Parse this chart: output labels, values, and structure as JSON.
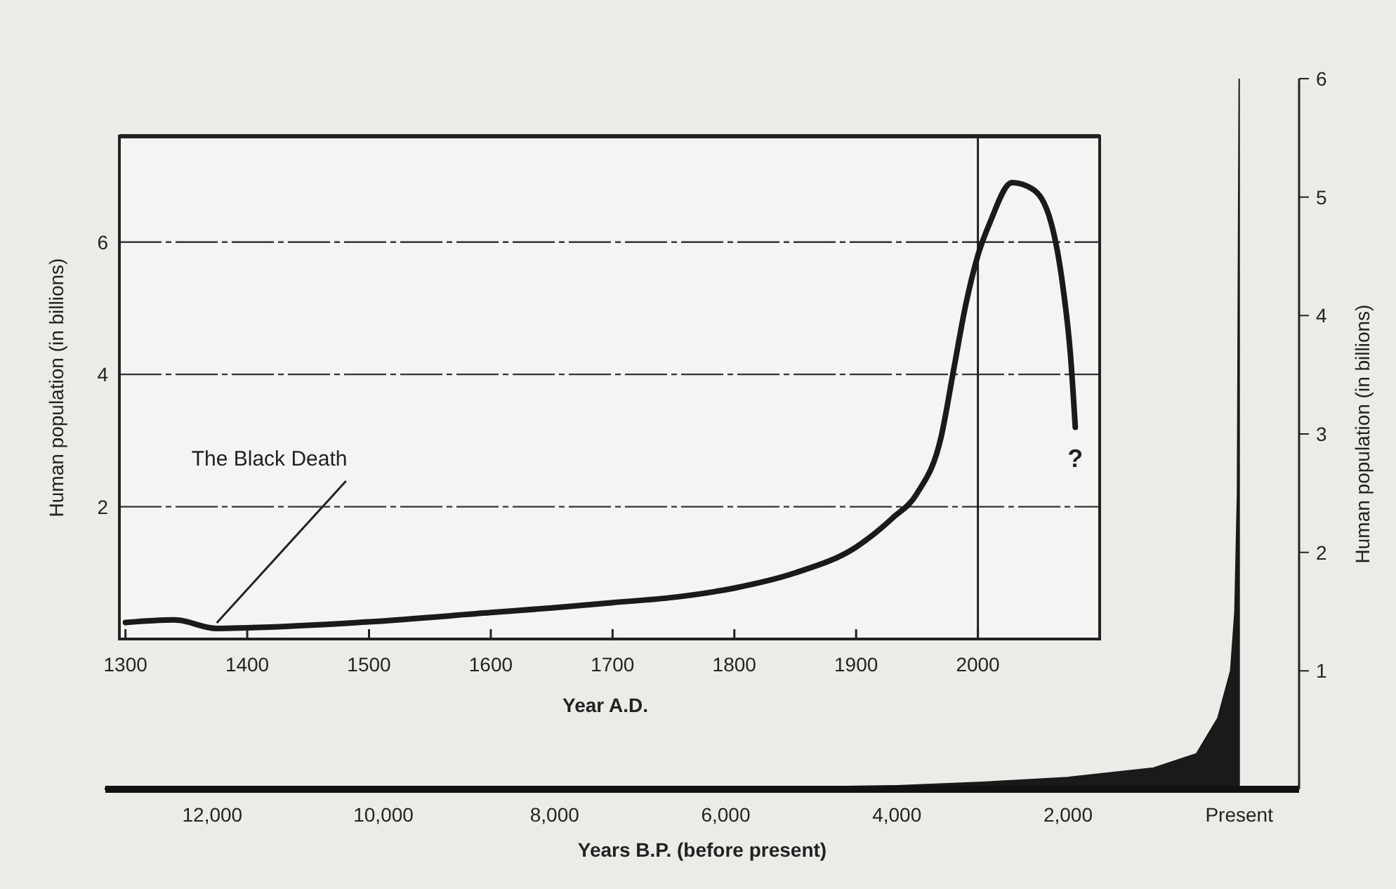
{
  "chart_data": [
    {
      "type": "area",
      "xlabel": "Years B.P. (before present)",
      "ylabel": "Human population (in billions)",
      "x": [
        13250,
        12000,
        10000,
        8000,
        6000,
        5000,
        4000,
        3000,
        2000,
        1000,
        500,
        250,
        100,
        50,
        20,
        0
      ],
      "values": [
        0.01,
        0.01,
        0.01,
        0.01,
        0.02,
        0.02,
        0.03,
        0.06,
        0.1,
        0.18,
        0.3,
        0.6,
        1.0,
        1.5,
        2.5,
        6
      ],
      "color": "#1a1a1a",
      "xlim": [
        13250,
        -700
      ],
      "xticks": [
        {
          "value": 12000,
          "label": "12,000"
        },
        {
          "value": 10000,
          "label": "10,000"
        },
        {
          "value": 8000,
          "label": "8,000"
        },
        {
          "value": 6000,
          "label": "6,000"
        },
        {
          "value": 4000,
          "label": "4,000"
        },
        {
          "value": 2000,
          "label": "2,000"
        },
        {
          "value": 0,
          "label": "Present"
        }
      ],
      "ylim": [
        0,
        6
      ],
      "yticks": [
        1,
        2,
        3,
        4,
        5,
        6
      ]
    },
    {
      "type": "line",
      "xlabel": "Year A.D.",
      "ylabel": "Human population (in billions)",
      "x": [
        1300,
        1340,
        1375,
        1400,
        1500,
        1600,
        1650,
        1700,
        1750,
        1800,
        1850,
        1900,
        1930,
        1950,
        1970,
        1980,
        1990,
        2000,
        2010,
        2028,
        2045,
        2060,
        2070,
        2076,
        2080
      ],
      "values": [
        0.25,
        0.29,
        0.16,
        0.17,
        0.26,
        0.4,
        0.47,
        0.55,
        0.63,
        0.77,
        1.0,
        1.39,
        1.83,
        2.2,
        3.07,
        4.06,
        5.05,
        5.8,
        6.3,
        6.9,
        6.8,
        6.3,
        5.3,
        4.3,
        3.2
      ],
      "color": "#1a1a1a",
      "xlim": [
        1295,
        2100
      ],
      "xticks": [
        1300,
        1400,
        1500,
        1600,
        1700,
        1800,
        1900,
        2000
      ],
      "ylim": [
        0,
        7.6
      ],
      "yticks": [
        2,
        4,
        6
      ],
      "grid": "y",
      "ref_lines": [
        {
          "axis": "x",
          "value": 2000
        }
      ],
      "annotations": [
        {
          "text": "The Black Death",
          "x": 1375,
          "y": 0.16
        },
        {
          "text": "?",
          "x": 2080,
          "y": 3.2
        }
      ]
    }
  ]
}
